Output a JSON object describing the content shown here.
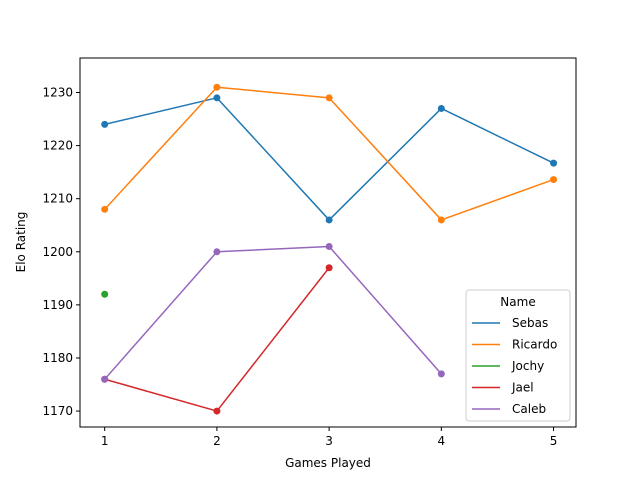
{
  "chart_data": {
    "type": "line",
    "title": "",
    "xlabel": "Games Played",
    "ylabel": "Elo Rating",
    "xlim": [
      0.78,
      5.2
    ],
    "ylim": [
      1167,
      1236.5
    ],
    "xticks": [
      1,
      2,
      3,
      4,
      5
    ],
    "yticks": [
      1170,
      1180,
      1190,
      1200,
      1210,
      1220,
      1230
    ],
    "grid": false,
    "legend": {
      "title": "Name",
      "placement": "lower-right"
    },
    "series": [
      {
        "name": "Sebas",
        "color": "#1f77b4",
        "points": [
          [
            1,
            1224
          ],
          [
            2,
            1229
          ],
          [
            3,
            1206
          ],
          [
            4,
            1227
          ],
          [
            5,
            1216.7
          ]
        ]
      },
      {
        "name": "Ricardo",
        "color": "#ff7f0e",
        "points": [
          [
            1,
            1208
          ],
          [
            2,
            1231
          ],
          [
            3,
            1229
          ],
          [
            4,
            1206
          ],
          [
            5,
            1213.6
          ]
        ]
      },
      {
        "name": "Jochy",
        "color": "#2ca02c",
        "points": [
          [
            1,
            1192
          ]
        ]
      },
      {
        "name": "Jael",
        "color": "#d62728",
        "points": [
          [
            1,
            1176
          ],
          [
            2,
            1170
          ],
          [
            3,
            1197
          ]
        ]
      },
      {
        "name": "Caleb",
        "color": "#9467bd",
        "points": [
          [
            1,
            1176
          ],
          [
            2,
            1200
          ],
          [
            3,
            1201
          ],
          [
            4,
            1177
          ]
        ]
      }
    ]
  }
}
